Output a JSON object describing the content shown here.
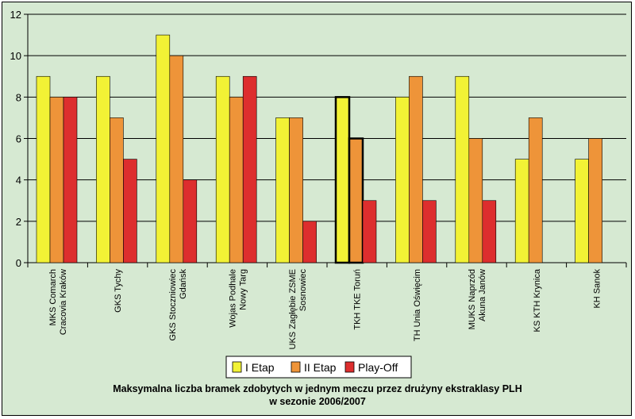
{
  "chart_data": {
    "type": "bar",
    "title_lines": [
      "Maksymalna liczba bramek zdobytych w jednym meczu przez drużyny ekstraklasy PLH",
      "w sezonie 2006/2007"
    ],
    "categories": [
      [
        "MKS Comarch",
        "Cracovia Kraków"
      ],
      [
        "GKS Tychy"
      ],
      [
        "GKS Stoczniowiec",
        "Gdańsk"
      ],
      [
        "Wojas Podhale",
        "Nowy Targ"
      ],
      [
        "UKS Zagłębie ZSME",
        "Sosnowiec"
      ],
      [
        "TKH TKE Toruń"
      ],
      [
        "TH Unia Oświęcim"
      ],
      [
        "MUKS Naprzód",
        "Akuna Janów"
      ],
      [
        "KS KTH Krynica"
      ],
      [
        "KH Sanok"
      ]
    ],
    "series": [
      {
        "name": "I Etap",
        "color": "#f2f235",
        "values": [
          9,
          9,
          11,
          9,
          7,
          8,
          8,
          9,
          5,
          5
        ]
      },
      {
        "name": "II Etap",
        "color": "#ee9439",
        "values": [
          8,
          7,
          10,
          8,
          7,
          6,
          9,
          6,
          7,
          6
        ]
      },
      {
        "name": "Play-Off",
        "color": "#dd2e2e",
        "values": [
          8,
          5,
          4,
          9,
          2,
          3,
          3,
          3,
          null,
          null
        ]
      }
    ],
    "highlighted_category_index": 5,
    "ylim": [
      0,
      12
    ],
    "yticks": [
      0,
      2,
      4,
      6,
      8,
      10,
      12
    ],
    "plot_background": "#d6e9d2",
    "grid": true,
    "legend_position": "bottom-center"
  }
}
